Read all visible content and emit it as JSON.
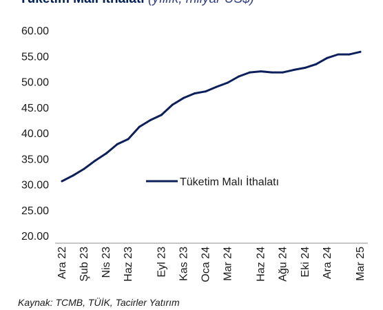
{
  "title": "Tüketim Malı İthalatı",
  "subtitle": "(yıllık, milyar US$)",
  "source": "Kaynak: TCMB, TÜİK, Tacirler Yatırım",
  "chart_data": {
    "type": "line",
    "title": "Tüketim Malı İthalatı",
    "subtitle": "(yıllık, milyar US$)",
    "xlabel": "",
    "ylabel": "",
    "ylim": [
      20,
      60
    ],
    "yticks": [
      "20.00",
      "25.00",
      "30.00",
      "35.00",
      "40.00",
      "45.00",
      "50.00",
      "55.00",
      "60.00"
    ],
    "xtick_labels": [
      "Ara 22",
      "Şub 23",
      "Nis 23",
      "Haz 23",
      "Eyl 23",
      "Kas 23",
      "Oca 24",
      "Mar 24",
      "Haz 24",
      "Ağu 24",
      "Eki 24",
      "Ara 24",
      "Mar 25"
    ],
    "grid": false,
    "legend": "center",
    "series": [
      {
        "name": "Tüketim Malı İthalatı",
        "color": "#0b1f5c",
        "x": [
          "Ara 22",
          "Oca 23",
          "Şub 23",
          "Mar 23",
          "Nis 23",
          "May 23",
          "Haz 23",
          "Tem 23",
          "Ağu 23",
          "Eyl 23",
          "Eki 23",
          "Kas 23",
          "Ara 23",
          "Oca 24",
          "Şub 24",
          "Mar 24",
          "Nis 24",
          "May 24",
          "Haz 24",
          "Tem 24",
          "Ağu 24",
          "Eyl 24",
          "Eki 24",
          "Kas 24",
          "Ara 24",
          "Oca 25",
          "Şub 25",
          "Mar 25"
        ],
        "values": [
          30.6,
          31.7,
          33.0,
          34.6,
          36.0,
          37.8,
          38.8,
          41.2,
          42.5,
          43.5,
          45.5,
          46.8,
          47.7,
          48.1,
          49.0,
          49.8,
          51.0,
          51.8,
          52.0,
          51.8,
          51.8,
          52.3,
          52.7,
          53.4,
          54.6,
          55.3,
          55.3,
          55.8
        ]
      }
    ]
  }
}
